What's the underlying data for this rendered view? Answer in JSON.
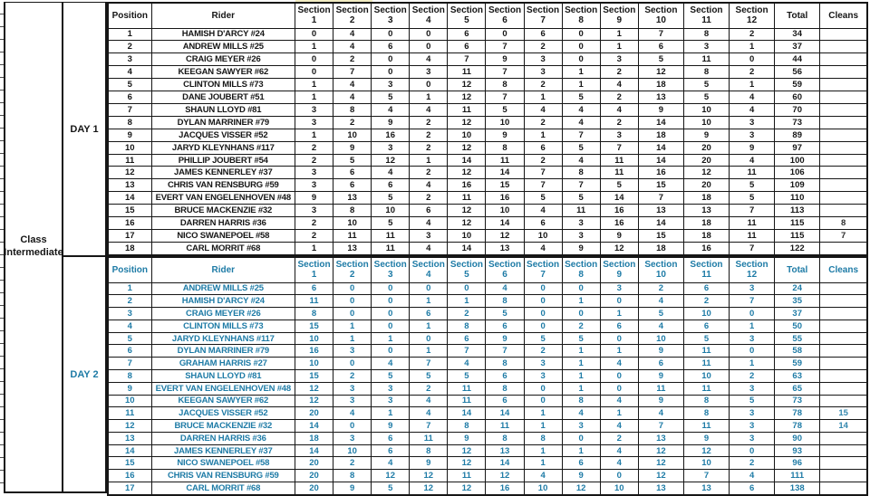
{
  "sheet": {
    "class_label": {
      "line1": "Class",
      "line2": "Intermediate"
    },
    "columns": {
      "position": "Position",
      "rider": "Rider",
      "section": "Section",
      "section_numbers": [
        "1",
        "2",
        "3",
        "4",
        "5",
        "6",
        "7",
        "8",
        "9",
        "10",
        "11",
        "12"
      ],
      "total": "Total",
      "cleans": "Cleans"
    },
    "colors": {
      "day1_text": "#161616",
      "day2_text": "#1e7ba6",
      "grid": "#161616",
      "top_highlight": "#f2ecc2"
    },
    "days": [
      {
        "label": "DAY 1",
        "rows": [
          {
            "position": "1",
            "rider": "HAMISH D'ARCY #24",
            "sections": [
              0,
              4,
              0,
              0,
              6,
              0,
              6,
              0,
              1,
              7,
              8,
              2
            ],
            "total": "34",
            "cleans": ""
          },
          {
            "position": "2",
            "rider": "ANDREW MILLS #25",
            "sections": [
              1,
              4,
              6,
              0,
              6,
              7,
              2,
              0,
              1,
              6,
              3,
              1
            ],
            "total": "37",
            "cleans": ""
          },
          {
            "position": "3",
            "rider": "CRAIG MEYER #26",
            "sections": [
              0,
              2,
              0,
              4,
              7,
              9,
              3,
              0,
              3,
              5,
              11,
              0
            ],
            "total": "44",
            "cleans": ""
          },
          {
            "position": "4",
            "rider": "KEEGAN SAWYER #62",
            "sections": [
              0,
              7,
              0,
              3,
              11,
              7,
              3,
              1,
              2,
              12,
              8,
              2
            ],
            "total": "56",
            "cleans": ""
          },
          {
            "position": "5",
            "rider": "CLINTON MILLS #73",
            "sections": [
              1,
              4,
              3,
              0,
              12,
              8,
              2,
              1,
              4,
              18,
              5,
              1
            ],
            "total": "59",
            "cleans": ""
          },
          {
            "position": "6",
            "rider": "DANE JOUBERT #51",
            "sections": [
              1,
              4,
              5,
              1,
              12,
              7,
              1,
              5,
              2,
              13,
              5,
              4
            ],
            "total": "60",
            "cleans": ""
          },
          {
            "position": "7",
            "rider": "SHAUN LLOYD #81",
            "sections": [
              3,
              8,
              4,
              4,
              11,
              5,
              4,
              4,
              4,
              9,
              10,
              4
            ],
            "total": "70",
            "cleans": ""
          },
          {
            "position": "8",
            "rider": "DYLAN MARRINER #79",
            "sections": [
              3,
              2,
              9,
              2,
              12,
              10,
              2,
              4,
              2,
              14,
              10,
              3
            ],
            "total": "73",
            "cleans": ""
          },
          {
            "position": "9",
            "rider": "JACQUES VISSER #52",
            "sections": [
              1,
              10,
              16,
              2,
              10,
              9,
              1,
              7,
              3,
              18,
              9,
              3
            ],
            "total": "89",
            "cleans": ""
          },
          {
            "position": "10",
            "rider": "JARYD KLEYNHANS #117",
            "sections": [
              2,
              9,
              3,
              2,
              12,
              8,
              6,
              5,
              7,
              14,
              20,
              9
            ],
            "total": "97",
            "cleans": ""
          },
          {
            "position": "11",
            "rider": "PHILLIP JOUBERT #54",
            "sections": [
              2,
              5,
              12,
              1,
              14,
              11,
              2,
              4,
              11,
              14,
              20,
              4
            ],
            "total": "100",
            "cleans": ""
          },
          {
            "position": "12",
            "rider": "JAMES KENNERLEY #37",
            "sections": [
              3,
              6,
              4,
              2,
              12,
              14,
              7,
              8,
              11,
              16,
              12,
              11
            ],
            "total": "106",
            "cleans": ""
          },
          {
            "position": "13",
            "rider": "CHRIS VAN RENSBURG #59",
            "sections": [
              3,
              6,
              6,
              4,
              16,
              15,
              7,
              7,
              5,
              15,
              20,
              5
            ],
            "total": "109",
            "cleans": ""
          },
          {
            "position": "14",
            "rider": "EVERT VAN ENGELENHOVEN #48",
            "sections": [
              9,
              13,
              5,
              2,
              11,
              16,
              5,
              5,
              14,
              7,
              18,
              5
            ],
            "total": "110",
            "cleans": ""
          },
          {
            "position": "15",
            "rider": "BRUCE MACKENZIE #32",
            "sections": [
              3,
              8,
              10,
              6,
              12,
              10,
              4,
              11,
              16,
              13,
              13,
              7
            ],
            "total": "113",
            "cleans": ""
          },
          {
            "position": "16",
            "rider": "DARREN HARRIS #36",
            "sections": [
              2,
              10,
              5,
              4,
              12,
              14,
              6,
              3,
              16,
              14,
              18,
              11
            ],
            "total": "115",
            "cleans": "8"
          },
          {
            "position": "17",
            "rider": "NICO SWANEPOEL #58",
            "sections": [
              2,
              11,
              11,
              3,
              10,
              12,
              10,
              3,
              9,
              15,
              18,
              11
            ],
            "total": "115",
            "cleans": "7"
          },
          {
            "position": "18",
            "rider": "CARL MORRIT #68",
            "sections": [
              1,
              13,
              11,
              4,
              14,
              13,
              4,
              9,
              12,
              18,
              16,
              7
            ],
            "total": "122",
            "cleans": ""
          }
        ]
      },
      {
        "label": "DAY 2",
        "rows": [
          {
            "position": "1",
            "rider": "ANDREW MILLS #25",
            "sections": [
              6,
              0,
              0,
              0,
              0,
              4,
              0,
              0,
              3,
              2,
              6,
              3
            ],
            "total": "24",
            "cleans": ""
          },
          {
            "position": "2",
            "rider": "HAMISH D'ARCY #24",
            "sections": [
              11,
              0,
              0,
              1,
              1,
              8,
              0,
              1,
              0,
              4,
              2,
              7
            ],
            "total": "35",
            "cleans": ""
          },
          {
            "position": "3",
            "rider": "CRAIG MEYER #26",
            "sections": [
              8,
              0,
              0,
              6,
              2,
              5,
              0,
              0,
              1,
              5,
              10,
              0
            ],
            "total": "37",
            "cleans": ""
          },
          {
            "position": "4",
            "rider": "CLINTON MILLS #73",
            "sections": [
              15,
              1,
              0,
              1,
              8,
              6,
              0,
              2,
              6,
              4,
              6,
              1
            ],
            "total": "50",
            "cleans": ""
          },
          {
            "position": "5",
            "rider": "JARYD KLEYNHANS #117",
            "sections": [
              10,
              1,
              1,
              0,
              6,
              9,
              5,
              5,
              0,
              10,
              5,
              3
            ],
            "total": "55",
            "cleans": ""
          },
          {
            "position": "6",
            "rider": "DYLAN MARRINER #79",
            "sections": [
              16,
              3,
              0,
              1,
              7,
              7,
              2,
              1,
              1,
              9,
              11,
              0
            ],
            "total": "58",
            "cleans": ""
          },
          {
            "position": "7",
            "rider": "GRAHAM HARRIS #27",
            "sections": [
              10,
              0,
              4,
              7,
              4,
              8,
              3,
              1,
              4,
              6,
              11,
              1
            ],
            "total": "59",
            "cleans": ""
          },
          {
            "position": "8",
            "rider": "SHAUN LLOYD #81",
            "sections": [
              15,
              2,
              5,
              5,
              5,
              6,
              3,
              1,
              0,
              9,
              10,
              2
            ],
            "total": "63",
            "cleans": ""
          },
          {
            "position": "9",
            "rider": "EVERT VAN ENGELENHOVEN #48",
            "sections": [
              12,
              3,
              3,
              2,
              11,
              8,
              0,
              1,
              0,
              11,
              11,
              3
            ],
            "total": "65",
            "cleans": ""
          },
          {
            "position": "10",
            "rider": "KEEGAN SAWYER #62",
            "sections": [
              12,
              3,
              3,
              4,
              11,
              6,
              0,
              8,
              4,
              9,
              8,
              5
            ],
            "total": "73",
            "cleans": ""
          },
          {
            "position": "11",
            "rider": "JACQUES VISSER #52",
            "sections": [
              20,
              4,
              1,
              4,
              14,
              14,
              1,
              4,
              1,
              4,
              8,
              3
            ],
            "total": "78",
            "cleans": "15"
          },
          {
            "position": "12",
            "rider": "BRUCE MACKENZIE #32",
            "sections": [
              14,
              0,
              9,
              7,
              8,
              11,
              1,
              3,
              4,
              7,
              11,
              3
            ],
            "total": "78",
            "cleans": "14"
          },
          {
            "position": "13",
            "rider": "DARREN HARRIS #36",
            "sections": [
              18,
              3,
              6,
              11,
              9,
              8,
              8,
              0,
              2,
              13,
              9,
              3
            ],
            "total": "90",
            "cleans": ""
          },
          {
            "position": "14",
            "rider": "JAMES KENNERLEY #37",
            "sections": [
              14,
              10,
              6,
              8,
              12,
              13,
              1,
              1,
              4,
              12,
              12,
              0
            ],
            "total": "93",
            "cleans": ""
          },
          {
            "position": "15",
            "rider": "NICO SWANEPOEL #58",
            "sections": [
              20,
              2,
              4,
              9,
              12,
              14,
              1,
              6,
              4,
              12,
              10,
              2
            ],
            "total": "96",
            "cleans": ""
          },
          {
            "position": "16",
            "rider": "CHRIS VAN RENSBURG #59",
            "sections": [
              20,
              8,
              12,
              12,
              11,
              12,
              4,
              9,
              0,
              12,
              7,
              4
            ],
            "total": "111",
            "cleans": ""
          },
          {
            "position": "17",
            "rider": "CARL MORRIT #68",
            "sections": [
              20,
              9,
              5,
              12,
              12,
              16,
              10,
              12,
              10,
              13,
              13,
              6
            ],
            "total": "138",
            "cleans": ""
          }
        ]
      }
    ]
  }
}
